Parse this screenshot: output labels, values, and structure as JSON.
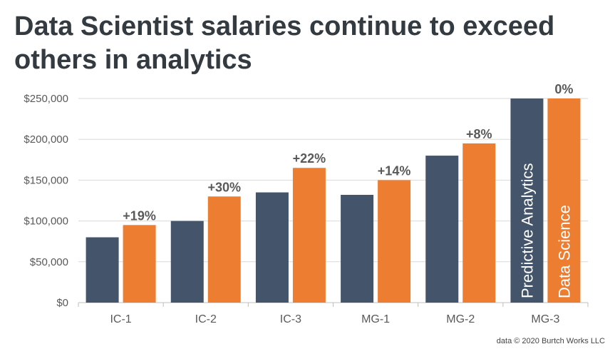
{
  "title_line1": "Data Scientist salaries continue to exceed",
  "title_line2": "others in analytics",
  "credit": "data © 2020 Burtch Works LLC",
  "colors": {
    "predictive": "#44546a",
    "data_science": "#ed7d31",
    "title": "#333a40",
    "axis_text": "#595959",
    "grid": "#d9d9d9",
    "pct_label": "#595959"
  },
  "chart_data": {
    "type": "bar",
    "title": "Data Scientist salaries continue to exceed others in analytics",
    "xlabel": "",
    "ylabel": "",
    "ylim": [
      0,
      250000
    ],
    "yticks": [
      0,
      50000,
      100000,
      150000,
      200000,
      250000
    ],
    "ytick_labels": [
      "$0",
      "$50,000",
      "$100,000",
      "$150,000",
      "$200,000",
      "$250,000"
    ],
    "categories": [
      "IC-1",
      "IC-2",
      "IC-3",
      "MG-1",
      "MG-2",
      "MG-3"
    ],
    "series": [
      {
        "name": "Predictive Analytics",
        "values": [
          80000,
          100000,
          135000,
          132000,
          180000,
          250000
        ]
      },
      {
        "name": "Data Science",
        "values": [
          95000,
          130000,
          165000,
          150000,
          195000,
          250000
        ]
      }
    ],
    "pct_labels": [
      "+19%",
      "+30%",
      "+22%",
      "+14%",
      "+8%",
      "0%"
    ],
    "legend": "inside-last-group-bars"
  }
}
